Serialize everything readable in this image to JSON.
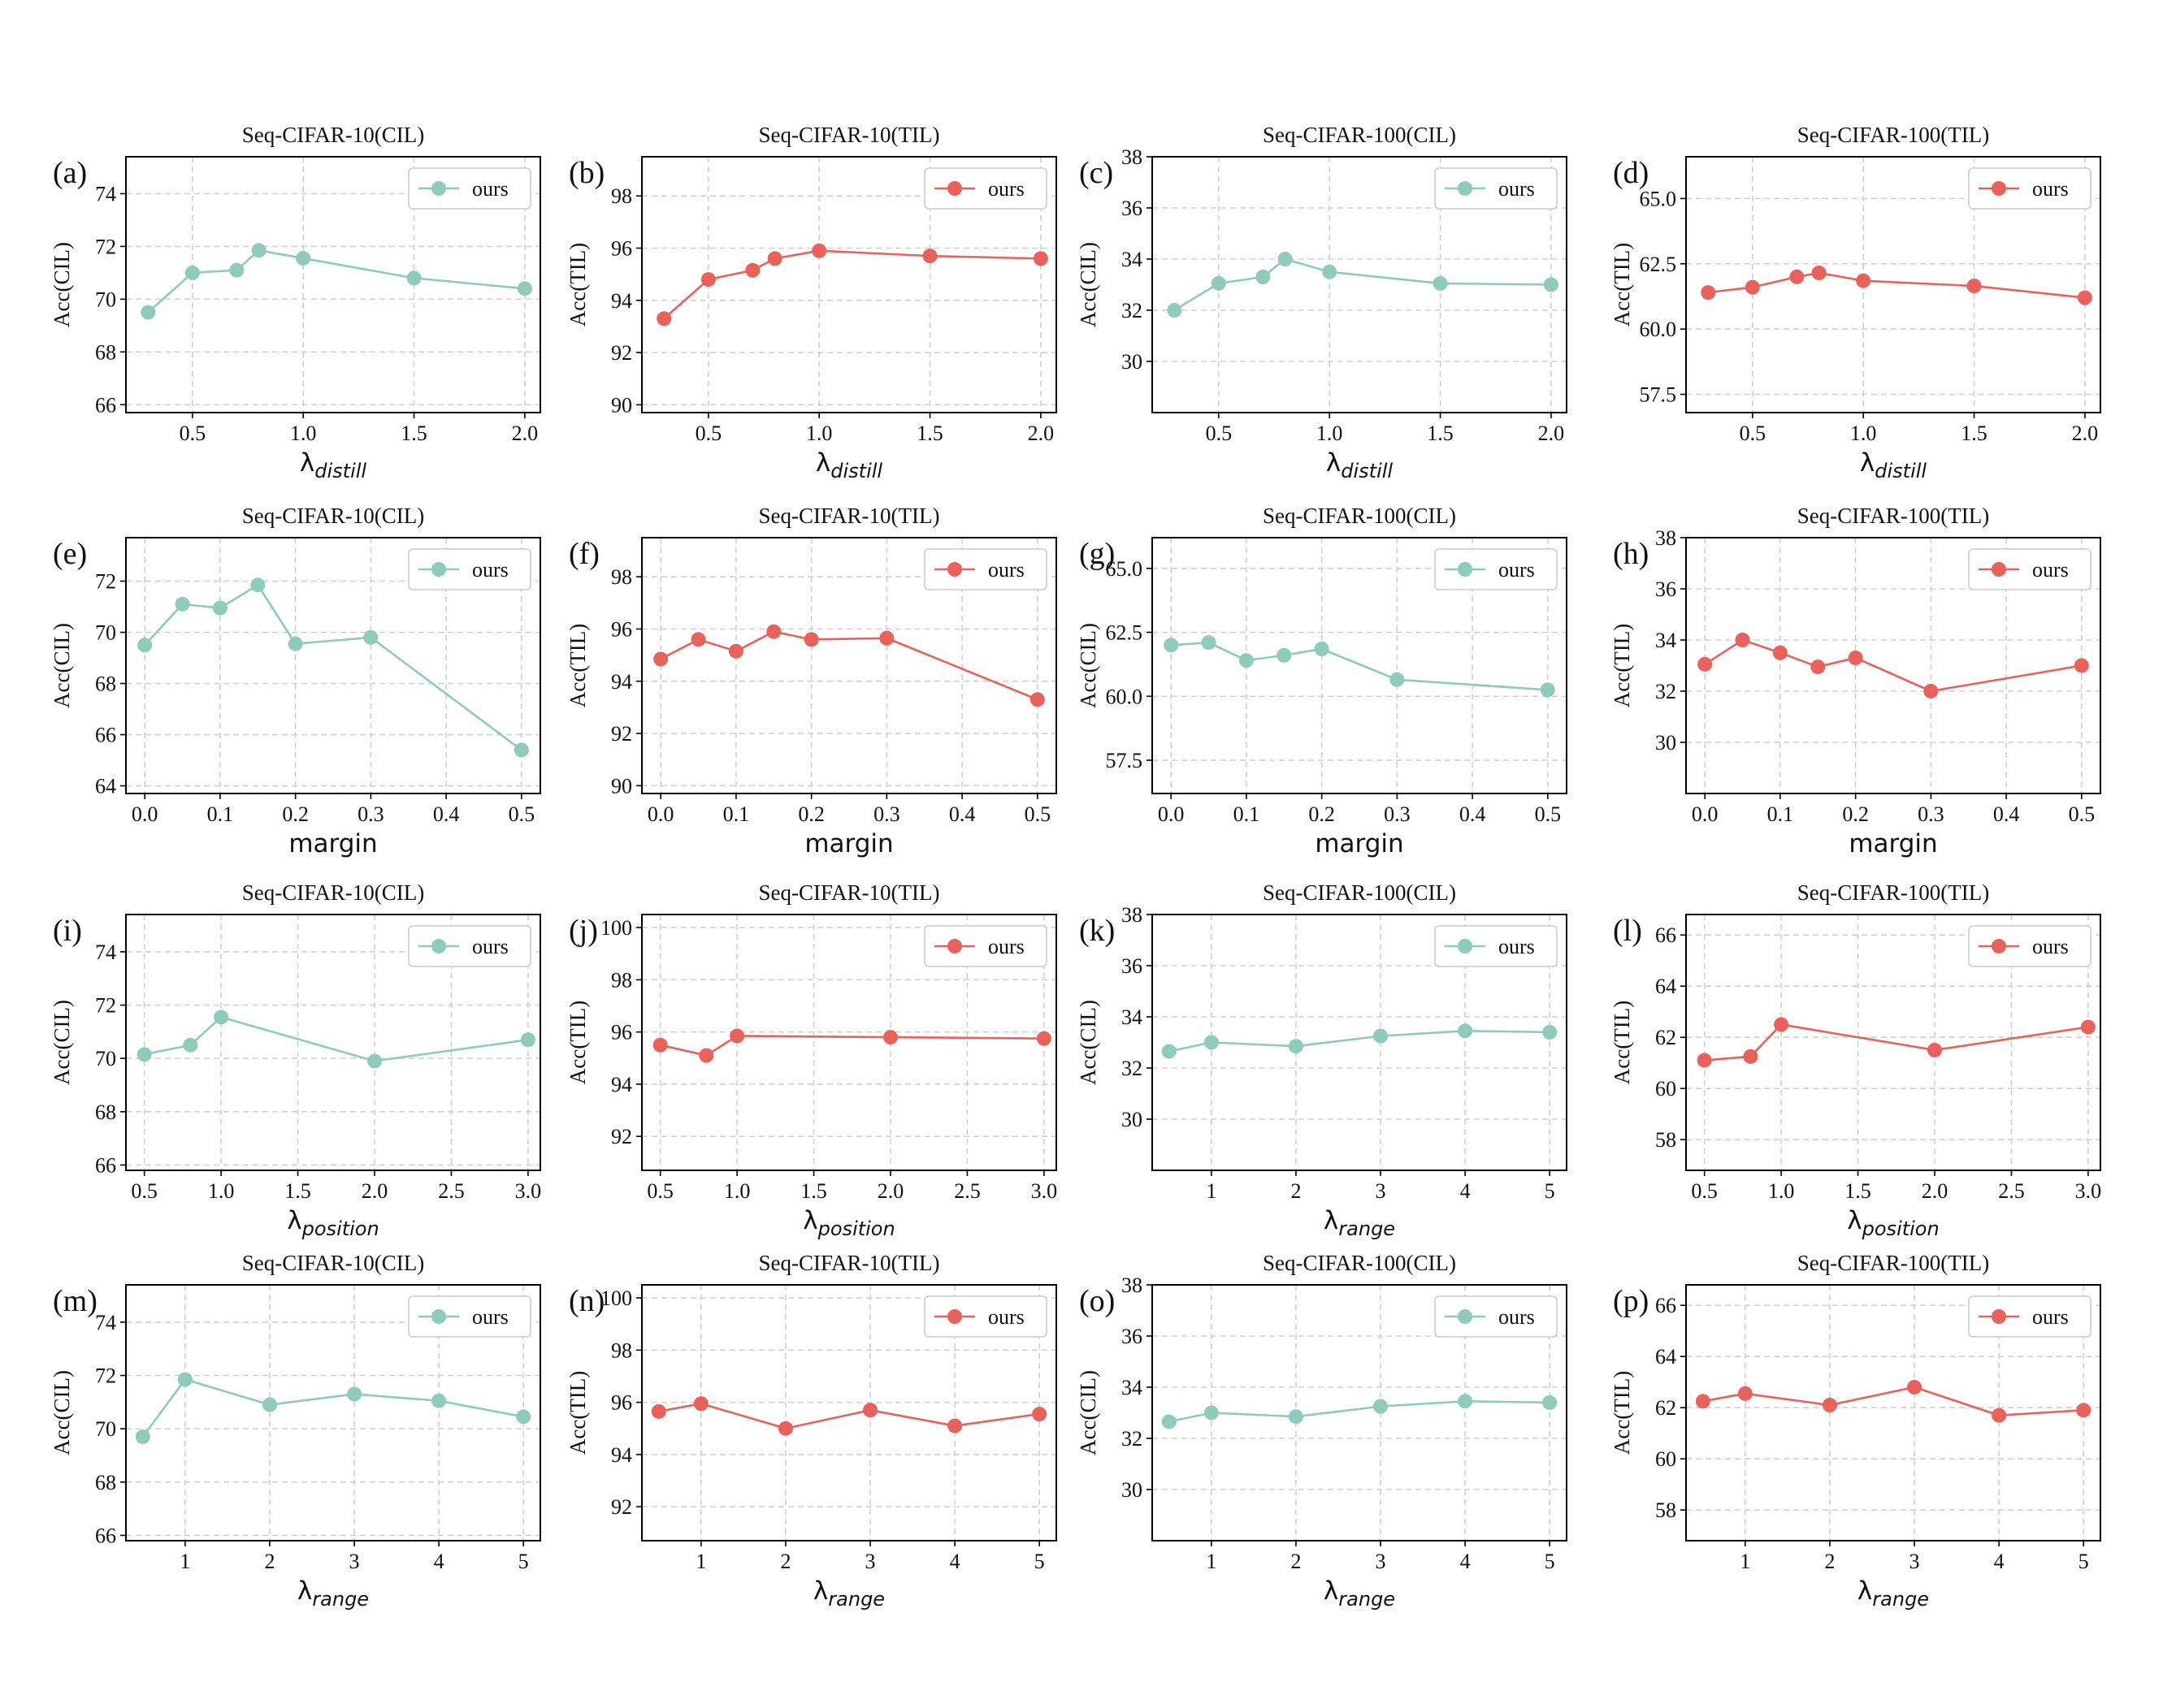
{
  "colors": {
    "cil": "#8ecbbd",
    "til": "#e8625b",
    "grid": "#d0d0d0",
    "axis": "#000000"
  },
  "chart_data": [
    {
      "id": "a",
      "panel_label": "(a)",
      "type": "line",
      "title": "Seq-CIFAR-10(CIL)",
      "ylabel": "Acc(CIL)",
      "xlabel": "λ",
      "xlabel_sub": "distill",
      "legend": "ours",
      "legend_position": "top-right",
      "color_key": "cil",
      "grid": true,
      "x": [
        0.3,
        0.5,
        0.7,
        0.8,
        1.0,
        1.5,
        2.0
      ],
      "y": [
        69.5,
        71.0,
        71.1,
        71.85,
        71.55,
        70.8,
        70.4
      ],
      "xlim": [
        0.2,
        2.07
      ],
      "ylim": [
        65.7,
        75.4
      ],
      "xticks": [
        0.5,
        1.0,
        1.5,
        2.0
      ],
      "xtick_labels": [
        "0.5",
        "1.0",
        "1.5",
        "2.0"
      ],
      "yticks": [
        66,
        68,
        70,
        72,
        74
      ],
      "ytick_labels": [
        "66",
        "68",
        "70",
        "72",
        "74"
      ]
    },
    {
      "id": "b",
      "panel_label": "(b)",
      "type": "line",
      "title": "Seq-CIFAR-10(TIL)",
      "ylabel": "Acc(TIL)",
      "xlabel": "λ",
      "xlabel_sub": "distill",
      "legend": "ours",
      "legend_position": "top-right",
      "color_key": "til",
      "grid": true,
      "x": [
        0.3,
        0.5,
        0.7,
        0.8,
        1.0,
        1.5,
        2.0
      ],
      "y": [
        93.3,
        94.8,
        95.15,
        95.6,
        95.9,
        95.7,
        95.6
      ],
      "xlim": [
        0.2,
        2.07
      ],
      "ylim": [
        89.7,
        99.5
      ],
      "xticks": [
        0.5,
        1.0,
        1.5,
        2.0
      ],
      "xtick_labels": [
        "0.5",
        "1.0",
        "1.5",
        "2.0"
      ],
      "yticks": [
        90,
        92,
        94,
        96,
        98
      ],
      "ytick_labels": [
        "90",
        "92",
        "94",
        "96",
        "98"
      ]
    },
    {
      "id": "c",
      "panel_label": "(c)",
      "type": "line",
      "title": "Seq-CIFAR-100(CIL)",
      "ylabel": "Acc(CIL)",
      "xlabel": "λ",
      "xlabel_sub": "distill",
      "legend": "ours",
      "legend_position": "top-right",
      "color_key": "cil",
      "grid": true,
      "x": [
        0.3,
        0.5,
        0.7,
        0.8,
        1.0,
        1.5,
        2.0
      ],
      "y": [
        32.0,
        33.05,
        33.3,
        34.0,
        33.5,
        33.05,
        33.0
      ],
      "xlim": [
        0.2,
        2.07
      ],
      "ylim": [
        28.0,
        38.0
      ],
      "xticks": [
        0.5,
        1.0,
        1.5,
        2.0
      ],
      "xtick_labels": [
        "0.5",
        "1.0",
        "1.5",
        "2.0"
      ],
      "yticks": [
        30,
        32,
        34,
        36,
        38
      ],
      "ytick_labels": [
        "30",
        "32",
        "34",
        "36",
        "38"
      ]
    },
    {
      "id": "d",
      "panel_label": "(d)",
      "type": "line",
      "title": "Seq-CIFAR-100(TIL)",
      "ylabel": "Acc(TIL)",
      "xlabel": "λ",
      "xlabel_sub": "distill",
      "legend": "ours",
      "legend_position": "top-right",
      "color_key": "til",
      "grid": true,
      "x": [
        0.3,
        0.5,
        0.7,
        0.8,
        1.0,
        1.5,
        2.0
      ],
      "y": [
        61.4,
        61.6,
        62.0,
        62.15,
        61.85,
        61.65,
        61.2
      ],
      "xlim": [
        0.2,
        2.07
      ],
      "ylim": [
        56.8,
        66.6
      ],
      "xticks": [
        0.5,
        1.0,
        1.5,
        2.0
      ],
      "xtick_labels": [
        "0.5",
        "1.0",
        "1.5",
        "2.0"
      ],
      "yticks": [
        57.5,
        60.0,
        62.5,
        65.0
      ],
      "ytick_labels": [
        "57.5",
        "60.0",
        "62.5",
        "65.0"
      ]
    },
    {
      "id": "e",
      "panel_label": "(e)",
      "type": "line",
      "title": "Seq-CIFAR-10(CIL)",
      "ylabel": "Acc(CIL)",
      "xlabel": "margin",
      "xlabel_sub": "",
      "legend": "ours",
      "legend_position": "top-right",
      "color_key": "cil",
      "grid": true,
      "x": [
        0.0,
        0.05,
        0.1,
        0.15,
        0.2,
        0.3,
        0.5
      ],
      "y": [
        69.5,
        71.1,
        70.95,
        71.85,
        69.55,
        69.8,
        65.4
      ],
      "xlim": [
        -0.025,
        0.525
      ],
      "ylim": [
        63.7,
        73.7
      ],
      "xticks": [
        0.0,
        0.1,
        0.2,
        0.3,
        0.4,
        0.5
      ],
      "xtick_labels": [
        "0.0",
        "0.1",
        "0.2",
        "0.3",
        "0.4",
        "0.5"
      ],
      "yticks": [
        64,
        66,
        68,
        70,
        72
      ],
      "ytick_labels": [
        "64",
        "66",
        "68",
        "70",
        "72"
      ]
    },
    {
      "id": "f",
      "panel_label": "(f)",
      "type": "line",
      "title": "Seq-CIFAR-10(TIL)",
      "ylabel": "Acc(TIL)",
      "xlabel": "margin",
      "xlabel_sub": "",
      "legend": "ours",
      "legend_position": "top-right",
      "color_key": "til",
      "grid": true,
      "x": [
        0.0,
        0.05,
        0.1,
        0.15,
        0.2,
        0.3,
        0.5
      ],
      "y": [
        94.85,
        95.6,
        95.15,
        95.9,
        95.6,
        95.65,
        93.3
      ],
      "xlim": [
        -0.025,
        0.525
      ],
      "ylim": [
        89.7,
        99.5
      ],
      "xticks": [
        0.0,
        0.1,
        0.2,
        0.3,
        0.4,
        0.5
      ],
      "xtick_labels": [
        "0.0",
        "0.1",
        "0.2",
        "0.3",
        "0.4",
        "0.5"
      ],
      "yticks": [
        90,
        92,
        94,
        96,
        98
      ],
      "ytick_labels": [
        "90",
        "92",
        "94",
        "96",
        "98"
      ]
    },
    {
      "id": "g",
      "panel_label": "(g)",
      "type": "line",
      "title": "Seq-CIFAR-100(CIL)",
      "ylabel": "Acc(CIL)",
      "xlabel": "margin",
      "xlabel_sub": "",
      "legend": "ours",
      "legend_position": "top-right",
      "color_key": "cil",
      "grid": true,
      "x": [
        0.0,
        0.05,
        0.1,
        0.15,
        0.2,
        0.3,
        0.5
      ],
      "y": [
        62.0,
        62.1,
        61.4,
        61.6,
        61.85,
        60.65,
        60.25
      ],
      "xlim": [
        -0.025,
        0.525
      ],
      "ylim": [
        56.2,
        66.2
      ],
      "xticks": [
        0.0,
        0.1,
        0.2,
        0.3,
        0.4,
        0.5
      ],
      "xtick_labels": [
        "0.0",
        "0.1",
        "0.2",
        "0.3",
        "0.4",
        "0.5"
      ],
      "yticks": [
        57.5,
        60.0,
        62.5,
        65.0
      ],
      "ytick_labels": [
        "57.5",
        "60.0",
        "62.5",
        "65.0"
      ]
    },
    {
      "id": "h",
      "panel_label": "(h)",
      "type": "line",
      "title": "Seq-CIFAR-100(TIL)",
      "ylabel": "Acc(TIL)",
      "xlabel": "margin",
      "xlabel_sub": "",
      "legend": "ours",
      "legend_position": "top-right",
      "color_key": "til",
      "grid": true,
      "x": [
        0.0,
        0.05,
        0.1,
        0.15,
        0.2,
        0.3,
        0.5
      ],
      "y": [
        33.05,
        34.0,
        33.5,
        32.95,
        33.3,
        32.0,
        33.0
      ],
      "xlim": [
        -0.025,
        0.525
      ],
      "ylim": [
        28.0,
        38.0
      ],
      "xticks": [
        0.0,
        0.1,
        0.2,
        0.3,
        0.4,
        0.5
      ],
      "xtick_labels": [
        "0.0",
        "0.1",
        "0.2",
        "0.3",
        "0.4",
        "0.5"
      ],
      "yticks": [
        30,
        32,
        34,
        36,
        38
      ],
      "ytick_labels": [
        "30",
        "32",
        "34",
        "36",
        "38"
      ]
    },
    {
      "id": "i",
      "panel_label": "(i)",
      "type": "line",
      "title": "Seq-CIFAR-10(CIL)",
      "ylabel": "Acc(CIL)",
      "xlabel": "λ",
      "xlabel_sub": "position",
      "legend": "ours",
      "legend_position": "top-right",
      "color_key": "cil",
      "grid": true,
      "x": [
        0.5,
        0.8,
        1.0,
        2.0,
        3.0
      ],
      "y": [
        70.15,
        70.5,
        71.55,
        69.9,
        70.7
      ],
      "xlim": [
        0.38,
        3.08
      ],
      "ylim": [
        65.8,
        75.4
      ],
      "xticks": [
        0.5,
        1.0,
        1.5,
        2.0,
        2.5,
        3.0
      ],
      "xtick_labels": [
        "0.5",
        "1.0",
        "1.5",
        "2.0",
        "2.5",
        "3.0"
      ],
      "yticks": [
        66,
        68,
        70,
        72,
        74
      ],
      "ytick_labels": [
        "66",
        "68",
        "70",
        "72",
        "74"
      ]
    },
    {
      "id": "j",
      "panel_label": "(j)",
      "type": "line",
      "title": "Seq-CIFAR-10(TIL)",
      "ylabel": "Acc(TIL)",
      "xlabel": "λ",
      "xlabel_sub": "position",
      "legend": "ours",
      "legend_position": "top-right",
      "color_key": "til",
      "grid": true,
      "x": [
        0.5,
        0.8,
        1.0,
        2.0,
        3.0
      ],
      "y": [
        95.5,
        95.1,
        95.85,
        95.8,
        95.75
      ],
      "xlim": [
        0.38,
        3.08
      ],
      "ylim": [
        90.7,
        100.5
      ],
      "xticks": [
        0.5,
        1.0,
        1.5,
        2.0,
        2.5,
        3.0
      ],
      "xtick_labels": [
        "0.5",
        "1.0",
        "1.5",
        "2.0",
        "2.5",
        "3.0"
      ],
      "yticks": [
        92,
        94,
        96,
        98,
        100
      ],
      "ytick_labels": [
        "92",
        "94",
        "96",
        "98",
        "100"
      ]
    },
    {
      "id": "k",
      "panel_label": "(k)",
      "type": "line",
      "title": "Seq-CIFAR-100(CIL)",
      "ylabel": "Acc(CIL)",
      "xlabel": "λ",
      "xlabel_sub": "range",
      "legend": "ours",
      "legend_position": "top-right",
      "color_key": "cil",
      "grid": true,
      "x": [
        0.5,
        1,
        2,
        3,
        4,
        5
      ],
      "y": [
        32.65,
        33.0,
        32.85,
        33.25,
        33.45,
        33.4
      ],
      "xlim": [
        0.3,
        5.2
      ],
      "ylim": [
        28.0,
        38.0
      ],
      "xticks": [
        1,
        2,
        3,
        4,
        5
      ],
      "xtick_labels": [
        "1",
        "2",
        "3",
        "4",
        "5"
      ],
      "yticks": [
        30,
        32,
        34,
        36,
        38
      ],
      "ytick_labels": [
        "30",
        "32",
        "34",
        "36",
        "38"
      ]
    },
    {
      "id": "l",
      "panel_label": "(l)",
      "type": "line",
      "title": "Seq-CIFAR-100(TIL)",
      "ylabel": "Acc(TIL)",
      "xlabel": "λ",
      "xlabel_sub": "position",
      "legend": "ours",
      "legend_position": "top-right",
      "color_key": "til",
      "grid": true,
      "x": [
        0.5,
        0.8,
        1.0,
        2.0,
        3.0
      ],
      "y": [
        61.1,
        61.25,
        62.5,
        61.5,
        62.4
      ],
      "xlim": [
        0.38,
        3.08
      ],
      "ylim": [
        56.8,
        66.8
      ],
      "xticks": [
        0.5,
        1.0,
        1.5,
        2.0,
        2.5,
        3.0
      ],
      "xtick_labels": [
        "0.5",
        "1.0",
        "1.5",
        "2.0",
        "2.5",
        "3.0"
      ],
      "yticks": [
        58,
        60,
        62,
        64,
        66
      ],
      "ytick_labels": [
        "58",
        "60",
        "62",
        "64",
        "66"
      ]
    },
    {
      "id": "m",
      "panel_label": "(m)",
      "type": "line",
      "title": "Seq-CIFAR-10(CIL)",
      "ylabel": "Acc(CIL)",
      "xlabel": "λ",
      "xlabel_sub": "range",
      "legend": "ours",
      "legend_position": "top-right",
      "color_key": "cil",
      "grid": true,
      "x": [
        0.5,
        1,
        2,
        3,
        4,
        5
      ],
      "y": [
        69.7,
        71.85,
        70.9,
        71.3,
        71.05,
        70.45
      ],
      "xlim": [
        0.3,
        5.2
      ],
      "ylim": [
        65.8,
        75.4
      ],
      "xticks": [
        1,
        2,
        3,
        4,
        5
      ],
      "xtick_labels": [
        "1",
        "2",
        "3",
        "4",
        "5"
      ],
      "yticks": [
        66,
        68,
        70,
        72,
        74
      ],
      "ytick_labels": [
        "66",
        "68",
        "70",
        "72",
        "74"
      ]
    },
    {
      "id": "n",
      "panel_label": "(n)",
      "type": "line",
      "title": "Seq-CIFAR-10(TIL)",
      "ylabel": "Acc(TIL)",
      "xlabel": "λ",
      "xlabel_sub": "range",
      "legend": "ours",
      "legend_position": "top-right",
      "color_key": "til",
      "grid": true,
      "x": [
        0.5,
        1,
        2,
        3,
        4,
        5
      ],
      "y": [
        95.65,
        95.95,
        95.0,
        95.7,
        95.1,
        95.55
      ],
      "xlim": [
        0.3,
        5.2
      ],
      "ylim": [
        90.7,
        100.5
      ],
      "xticks": [
        1,
        2,
        3,
        4,
        5
      ],
      "xtick_labels": [
        "1",
        "2",
        "3",
        "4",
        "5"
      ],
      "yticks": [
        92,
        94,
        96,
        98,
        100
      ],
      "ytick_labels": [
        "92",
        "94",
        "96",
        "98",
        "100"
      ]
    },
    {
      "id": "o",
      "panel_label": "(o)",
      "type": "line",
      "title": "Seq-CIFAR-100(CIL)",
      "ylabel": "Acc(CIL)",
      "xlabel": "λ",
      "xlabel_sub": "range",
      "legend": "ours",
      "legend_position": "top-right",
      "color_key": "cil",
      "grid": true,
      "x": [
        0.5,
        1,
        2,
        3,
        4,
        5
      ],
      "y": [
        32.65,
        33.0,
        32.85,
        33.25,
        33.45,
        33.4
      ],
      "xlim": [
        0.3,
        5.2
      ],
      "ylim": [
        28.0,
        38.0
      ],
      "xticks": [
        1,
        2,
        3,
        4,
        5
      ],
      "xtick_labels": [
        "1",
        "2",
        "3",
        "4",
        "5"
      ],
      "yticks": [
        30,
        32,
        34,
        36,
        38
      ],
      "ytick_labels": [
        "30",
        "32",
        "34",
        "36",
        "38"
      ]
    },
    {
      "id": "p",
      "panel_label": "(p)",
      "type": "line",
      "title": "Seq-CIFAR-100(TIL)",
      "ylabel": "Acc(TIL)",
      "xlabel": "λ",
      "xlabel_sub": "range",
      "legend": "ours",
      "legend_position": "top-right",
      "color_key": "til",
      "grid": true,
      "x": [
        0.5,
        1,
        2,
        3,
        4,
        5
      ],
      "y": [
        62.25,
        62.55,
        62.1,
        62.8,
        61.7,
        61.9
      ],
      "xlim": [
        0.3,
        5.2
      ],
      "ylim": [
        56.8,
        66.8
      ],
      "xticks": [
        1,
        2,
        3,
        4,
        5
      ],
      "xtick_labels": [
        "1",
        "2",
        "3",
        "4",
        "5"
      ],
      "yticks": [
        58,
        60,
        62,
        64,
        66
      ],
      "ytick_labels": [
        "58",
        "60",
        "62",
        "64",
        "66"
      ]
    }
  ]
}
